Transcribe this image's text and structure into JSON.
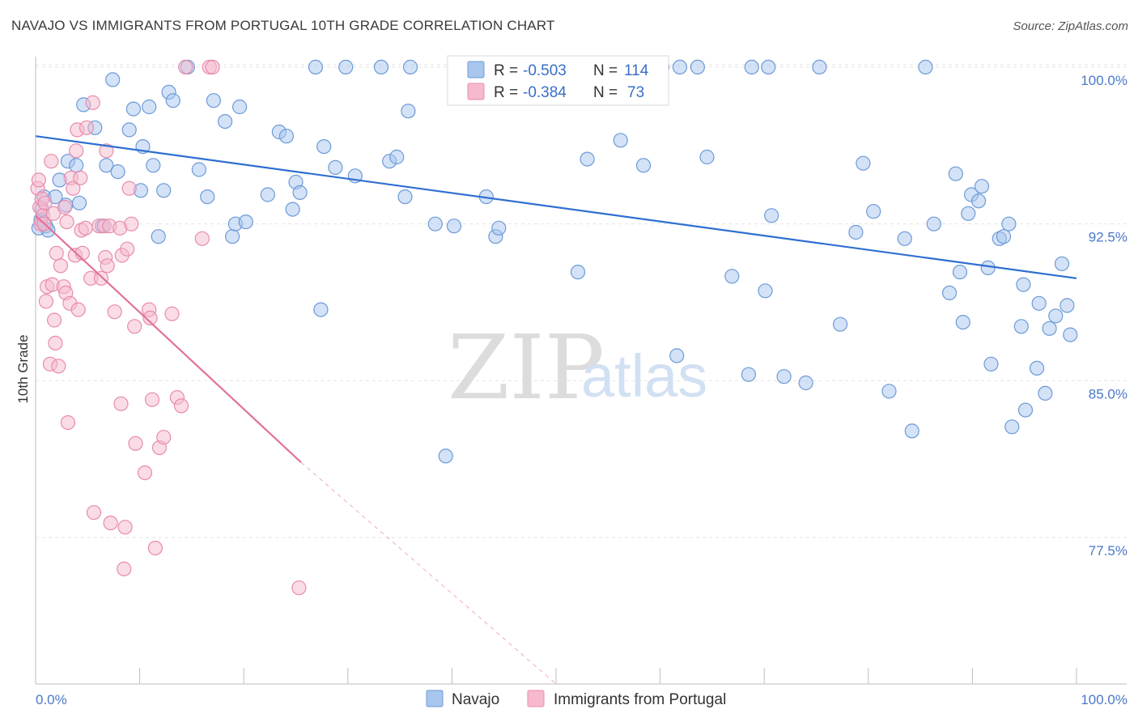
{
  "title": "NAVAJO VS IMMIGRANTS FROM PORTUGAL 10TH GRADE CORRELATION CHART",
  "source": "Source: ZipAtlas.com",
  "watermark": {
    "zip": "ZIP",
    "atlas": "atlas"
  },
  "colors": {
    "navajo_fill": "#a8c6ee",
    "navajo_stroke": "#6d9ad8",
    "navajo_line": "#2e6fd0",
    "portugal_fill": "#f6b9cd",
    "portugal_stroke": "#e98bab",
    "portugal_line": "#e0729b",
    "grid": "#e4e4e4",
    "tick_text": "#4a78c8"
  },
  "legend": {
    "rows": [
      {
        "r_label": "R = ",
        "r_value": "-0.503",
        "n_label": "N = ",
        "n_value": "114"
      },
      {
        "r_label": "R = ",
        "r_value": "-0.384",
        "n_label": "N = ",
        "n_value": "73"
      }
    ]
  },
  "bottom_legend": [
    "Navajo",
    "Immigrants from Portugal"
  ],
  "chart_data": {
    "type": "scatter",
    "title": "NAVAJO VS IMMIGRANTS FROM PORTUGAL 10TH GRADE CORRELATION CHART",
    "xlabel": "",
    "ylabel": "10th Grade",
    "xlim": [
      0,
      100
    ],
    "ylim": [
      70.5,
      100.5
    ],
    "x_tick_labels": [
      "0.0%",
      "100.0%"
    ],
    "y_ticks": [
      77.5,
      85.0,
      92.5,
      100.0
    ],
    "y_tick_labels": [
      "77.5%",
      "85.0%",
      "92.5%",
      "100.0%"
    ],
    "grid": "horizontal dashed",
    "legend_placement": "top-center",
    "series": [
      {
        "name": "Navajo",
        "r": -0.503,
        "n": 114,
        "trend": {
          "x": [
            0,
            100
          ],
          "y": [
            96.7,
            89.9
          ]
        },
        "points": [
          [
            0.3,
            92.3
          ],
          [
            0.5,
            92.7
          ],
          [
            0.6,
            93.2
          ],
          [
            0.8,
            93.8
          ],
          [
            1.0,
            92.4
          ],
          [
            1.2,
            92.2
          ],
          [
            1.9,
            93.8
          ],
          [
            2.3,
            94.6
          ],
          [
            2.9,
            93.4
          ],
          [
            3.1,
            95.5
          ],
          [
            3.9,
            95.3
          ],
          [
            4.2,
            93.5
          ],
          [
            4.6,
            98.2
          ],
          [
            5.7,
            97.1
          ],
          [
            6.4,
            92.4
          ],
          [
            6.8,
            95.3
          ],
          [
            7.4,
            99.4
          ],
          [
            7.9,
            95.0
          ],
          [
            9.0,
            97.0
          ],
          [
            9.4,
            98.0
          ],
          [
            10.1,
            94.1
          ],
          [
            10.3,
            96.2
          ],
          [
            10.9,
            98.1
          ],
          [
            11.3,
            95.3
          ],
          [
            11.8,
            91.9
          ],
          [
            12.3,
            94.1
          ],
          [
            12.8,
            98.8
          ],
          [
            13.2,
            98.4
          ],
          [
            14.6,
            100.0
          ],
          [
            15.7,
            95.1
          ],
          [
            16.5,
            93.8
          ],
          [
            17.1,
            98.4
          ],
          [
            18.2,
            97.4
          ],
          [
            18.9,
            91.9
          ],
          [
            19.2,
            92.5
          ],
          [
            19.6,
            98.1
          ],
          [
            20.2,
            92.6
          ],
          [
            22.3,
            93.9
          ],
          [
            23.4,
            96.9
          ],
          [
            24.1,
            96.7
          ],
          [
            24.7,
            93.2
          ],
          [
            25.0,
            94.5
          ],
          [
            25.4,
            94.0
          ],
          [
            26.9,
            100.0
          ],
          [
            27.4,
            88.4
          ],
          [
            27.7,
            96.2
          ],
          [
            28.8,
            95.2
          ],
          [
            29.8,
            100.0
          ],
          [
            30.7,
            94.8
          ],
          [
            33.2,
            100.0
          ],
          [
            34.0,
            95.5
          ],
          [
            34.7,
            95.7
          ],
          [
            35.5,
            93.8
          ],
          [
            35.8,
            97.9
          ],
          [
            36.0,
            100.0
          ],
          [
            38.4,
            92.5
          ],
          [
            39.4,
            81.4
          ],
          [
            40.2,
            92.4
          ],
          [
            43.3,
            93.8
          ],
          [
            44.2,
            91.9
          ],
          [
            44.5,
            92.3
          ],
          [
            47.6,
            100.0
          ],
          [
            52.1,
            90.2
          ],
          [
            53.0,
            95.6
          ],
          [
            56.2,
            96.5
          ],
          [
            58.4,
            95.3
          ],
          [
            60.2,
            100.0
          ],
          [
            61.6,
            86.2
          ],
          [
            61.9,
            100.0
          ],
          [
            63.6,
            100.0
          ],
          [
            64.5,
            95.7
          ],
          [
            66.9,
            90.0
          ],
          [
            68.5,
            85.3
          ],
          [
            68.8,
            100.0
          ],
          [
            70.1,
            89.3
          ],
          [
            70.4,
            100.0
          ],
          [
            70.7,
            92.9
          ],
          [
            71.9,
            85.2
          ],
          [
            74.0,
            84.9
          ],
          [
            75.3,
            100.0
          ],
          [
            77.3,
            87.7
          ],
          [
            78.8,
            92.1
          ],
          [
            79.5,
            95.4
          ],
          [
            80.5,
            93.1
          ],
          [
            82.0,
            84.5
          ],
          [
            83.5,
            91.8
          ],
          [
            84.2,
            82.6
          ],
          [
            85.5,
            100.0
          ],
          [
            86.3,
            92.5
          ],
          [
            87.8,
            89.2
          ],
          [
            88.4,
            94.9
          ],
          [
            88.8,
            90.2
          ],
          [
            89.1,
            87.8
          ],
          [
            89.6,
            93.0
          ],
          [
            89.9,
            93.9
          ],
          [
            90.6,
            93.6
          ],
          [
            90.9,
            94.3
          ],
          [
            91.5,
            90.4
          ],
          [
            91.8,
            85.8
          ],
          [
            92.6,
            91.8
          ],
          [
            93.0,
            91.9
          ],
          [
            93.5,
            92.5
          ],
          [
            93.8,
            82.8
          ],
          [
            94.7,
            87.6
          ],
          [
            94.9,
            89.6
          ],
          [
            95.1,
            83.6
          ],
          [
            96.2,
            85.6
          ],
          [
            96.4,
            88.7
          ],
          [
            97.0,
            84.4
          ],
          [
            97.4,
            87.5
          ],
          [
            98.0,
            88.1
          ],
          [
            98.6,
            90.6
          ],
          [
            99.1,
            88.6
          ],
          [
            99.4,
            87.2
          ]
        ]
      },
      {
        "name": "Immigrants from Portugal",
        "r": -0.384,
        "n": 73,
        "trend": {
          "x": [
            0,
            25.5
          ],
          "y": [
            92.9,
            81.1
          ]
        },
        "trend_extension": {
          "x": [
            25.5,
            50
          ],
          "y": [
            81.1,
            70.5
          ]
        },
        "points": [
          [
            0.2,
            94.2
          ],
          [
            0.3,
            94.6
          ],
          [
            0.4,
            93.3
          ],
          [
            0.5,
            92.5
          ],
          [
            0.6,
            93.7
          ],
          [
            0.7,
            92.9
          ],
          [
            0.8,
            92.5
          ],
          [
            0.9,
            93.5
          ],
          [
            1.0,
            88.8
          ],
          [
            1.1,
            89.5
          ],
          [
            1.4,
            85.8
          ],
          [
            1.5,
            95.5
          ],
          [
            1.6,
            89.6
          ],
          [
            1.7,
            93.0
          ],
          [
            1.8,
            87.9
          ],
          [
            1.9,
            86.8
          ],
          [
            2.0,
            91.1
          ],
          [
            2.2,
            85.7
          ],
          [
            2.4,
            90.5
          ],
          [
            2.7,
            89.5
          ],
          [
            2.8,
            93.3
          ],
          [
            2.9,
            89.2
          ],
          [
            3.0,
            92.6
          ],
          [
            3.1,
            83.0
          ],
          [
            3.3,
            88.7
          ],
          [
            3.4,
            94.7
          ],
          [
            3.6,
            94.2
          ],
          [
            3.8,
            91.0
          ],
          [
            3.9,
            96.0
          ],
          [
            4.0,
            97.0
          ],
          [
            4.1,
            88.4
          ],
          [
            4.3,
            94.7
          ],
          [
            4.4,
            92.2
          ],
          [
            4.5,
            91.1
          ],
          [
            4.8,
            92.3
          ],
          [
            4.9,
            97.1
          ],
          [
            5.3,
            89.9
          ],
          [
            5.5,
            98.3
          ],
          [
            5.6,
            78.7
          ],
          [
            6.1,
            92.4
          ],
          [
            6.3,
            89.9
          ],
          [
            6.6,
            92.4
          ],
          [
            6.7,
            90.9
          ],
          [
            6.8,
            96.0
          ],
          [
            6.9,
            90.5
          ],
          [
            7.1,
            92.4
          ],
          [
            7.2,
            78.2
          ],
          [
            7.6,
            88.3
          ],
          [
            8.1,
            92.3
          ],
          [
            8.2,
            83.9
          ],
          [
            8.3,
            91.0
          ],
          [
            8.5,
            76.0
          ],
          [
            8.6,
            78.0
          ],
          [
            8.8,
            91.3
          ],
          [
            9.0,
            94.2
          ],
          [
            9.2,
            92.5
          ],
          [
            9.5,
            87.6
          ],
          [
            9.6,
            82.0
          ],
          [
            10.5,
            80.6
          ],
          [
            10.9,
            88.4
          ],
          [
            11.0,
            88.0
          ],
          [
            11.2,
            84.1
          ],
          [
            11.5,
            77.0
          ],
          [
            11.9,
            81.8
          ],
          [
            12.3,
            82.3
          ],
          [
            13.1,
            88.2
          ],
          [
            13.6,
            84.2
          ],
          [
            14.0,
            83.8
          ],
          [
            14.4,
            100.0
          ],
          [
            16.0,
            91.8
          ],
          [
            16.7,
            100.0
          ],
          [
            17.0,
            100.0
          ],
          [
            25.3,
            75.1
          ]
        ]
      }
    ]
  }
}
